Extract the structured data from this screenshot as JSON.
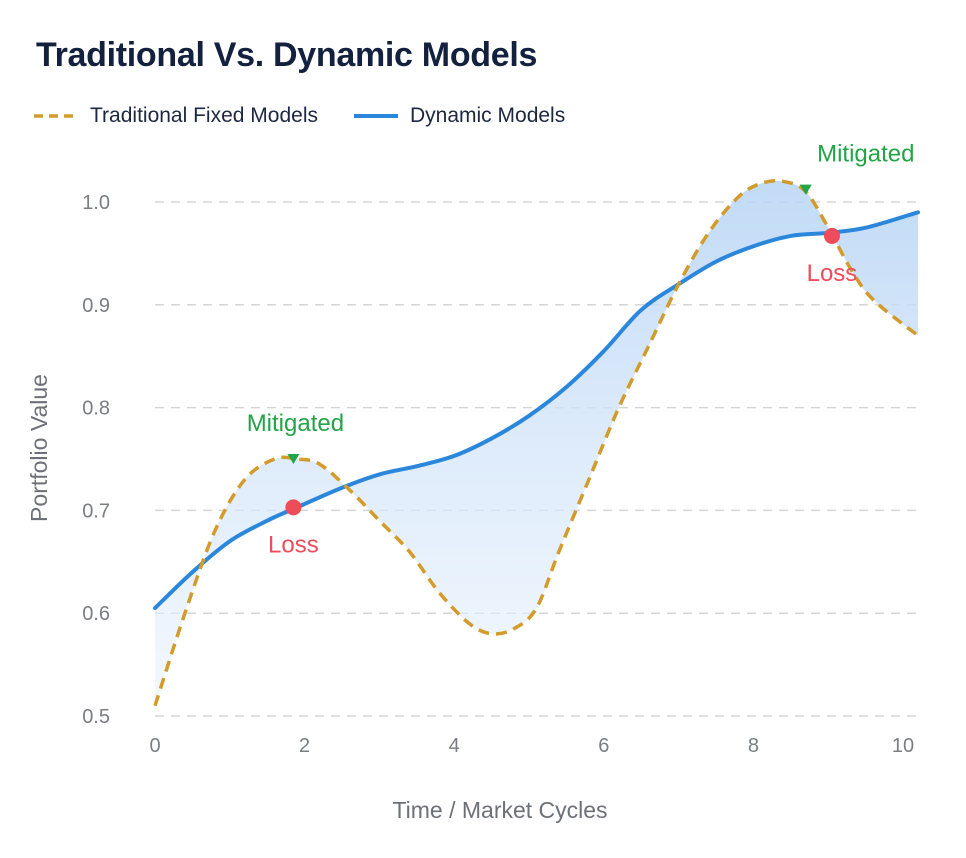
{
  "chart_data": {
    "type": "line",
    "title": "Traditional Vs. Dynamic Models",
    "xlabel": "Time / Market Cycles",
    "ylabel": "Portfolio Value",
    "xlim": [
      0,
      10.2
    ],
    "ylim": [
      0.5,
      1.0
    ],
    "xticks": [
      0,
      2,
      4,
      6,
      8,
      10
    ],
    "yticks": [
      0.5,
      0.6,
      0.7,
      0.8,
      0.9,
      1.0
    ],
    "grid": "horizontal-dashed",
    "legend_position": "top-left",
    "series": [
      {
        "name": "Traditional Fixed Models",
        "style": "dashed",
        "color": "#d29b2b",
        "x": [
          0,
          0.4,
          0.8,
          1.2,
          1.6,
          1.9,
          2.2,
          2.6,
          3.0,
          3.4,
          3.8,
          4.2,
          4.5,
          4.8,
          5.1,
          5.4,
          5.8,
          6.2,
          6.6,
          7.0,
          7.4,
          7.8,
          8.1,
          8.4,
          8.7,
          9.0,
          9.3,
          9.6,
          10.2
        ],
        "values": [
          0.51,
          0.6,
          0.68,
          0.73,
          0.75,
          0.75,
          0.745,
          0.72,
          0.69,
          0.66,
          0.62,
          0.59,
          0.58,
          0.585,
          0.605,
          0.66,
          0.73,
          0.8,
          0.86,
          0.92,
          0.97,
          1.005,
          1.018,
          1.02,
          1.01,
          0.975,
          0.935,
          0.905,
          0.87
        ]
      },
      {
        "name": "Dynamic Models",
        "style": "solid",
        "color": "#2b87db",
        "x": [
          0,
          0.5,
          1.0,
          1.5,
          1.9,
          2.5,
          3.0,
          3.5,
          4.0,
          4.5,
          5.0,
          5.5,
          6.0,
          6.5,
          7.0,
          7.5,
          8.0,
          8.5,
          9.0,
          9.5,
          10.2
        ],
        "values": [
          0.605,
          0.64,
          0.67,
          0.69,
          0.703,
          0.722,
          0.735,
          0.743,
          0.753,
          0.77,
          0.792,
          0.82,
          0.855,
          0.895,
          0.92,
          0.942,
          0.957,
          0.967,
          0.97,
          0.975,
          0.99
        ]
      }
    ],
    "annotations": [
      {
        "label": "Mitigated",
        "kind": "mitigated",
        "x": 1.85,
        "y": 0.75,
        "color": "#22a447"
      },
      {
        "label": "Loss",
        "kind": "loss",
        "x": 1.85,
        "y": 0.703,
        "color": "#ee4c5a"
      },
      {
        "label": "Mitigated",
        "kind": "mitigated",
        "x": 8.7,
        "y": 1.012,
        "color": "#22a447"
      },
      {
        "label": "Loss",
        "kind": "loss",
        "x": 9.05,
        "y": 0.967,
        "color": "#ee4c5a"
      }
    ],
    "shading": {
      "between": [
        "Dynamic Models",
        "Traditional Fixed Models"
      ],
      "color": "#cfe3fa"
    }
  }
}
